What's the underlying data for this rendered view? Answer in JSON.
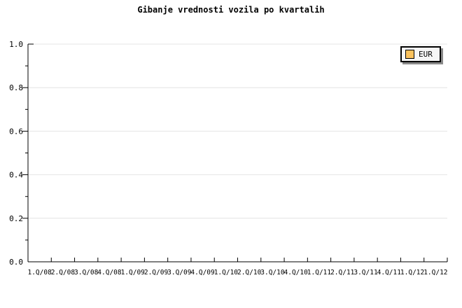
{
  "page": {
    "background": "#ffffff"
  },
  "chart_data": {
    "type": "line",
    "title": "Gibanje vrednosti vozila po kvartalih",
    "categories": [
      "1.Q/08",
      "2.Q/08",
      "3.Q/08",
      "4.Q/08",
      "1.Q/09",
      "2.Q/09",
      "3.Q/09",
      "4.Q/09",
      "1.Q/10",
      "2.Q/10",
      "3.Q/10",
      "4.Q/10",
      "1.Q/11",
      "2.Q/11",
      "3.Q/11",
      "4.Q/11",
      "1.Q/12",
      "1.Q/12"
    ],
    "series": [
      {
        "name": "EUR",
        "color": "#fbc25d",
        "values": []
      }
    ],
    "xlabel": "",
    "ylabel": "",
    "ylim": [
      0,
      1
    ],
    "y_tick_labels": [
      "0.0",
      "0.2",
      "0.4",
      "0.6",
      "0.8",
      "1.0"
    ],
    "y_major_ticks": [
      0,
      0.2,
      0.4,
      0.6,
      0.8,
      1.0
    ],
    "y_minor_tick_step": 0.1,
    "grid": "horizontal major gridlines only",
    "legend_position": "top-right",
    "legend": {
      "label": "EUR",
      "swatch_color": "#fbc25d"
    }
  },
  "colors": {
    "axis": "#000000",
    "gridline": "#e4e4e4",
    "text": "#000000",
    "legend_bg": "#f6f6f6",
    "legend_border": "#000000",
    "legend_shadow": "#8a8a8a",
    "swatch_border": "#000000"
  }
}
